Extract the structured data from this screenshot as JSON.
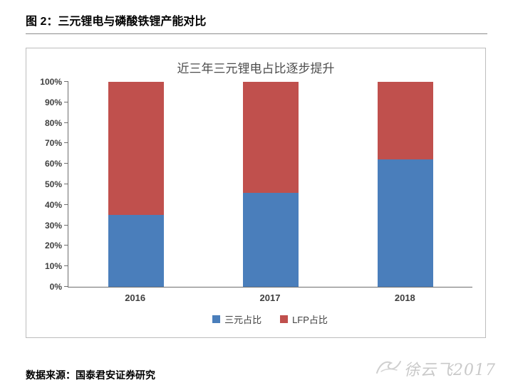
{
  "page": {
    "figure_title": "图 2：三元锂电与磷酸铁锂产能对比",
    "source": "数据来源：国泰君安证券研究",
    "watermark": "徐云飞2017"
  },
  "chart_data": {
    "type": "bar",
    "stacked": true,
    "title": "近三年三元锂电占比逐步提升",
    "categories": [
      "2016",
      "2017",
      "2018"
    ],
    "series": [
      {
        "name": "三元占比",
        "color": "#4a7ebb",
        "values": [
          35,
          46,
          62
        ]
      },
      {
        "name": "LFP占比",
        "color": "#c0504d",
        "values": [
          65,
          54,
          38
        ]
      }
    ],
    "xlabel": "",
    "ylabel": "",
    "ylim": [
      0,
      100
    ],
    "ytick_step": 10,
    "ytick_labels": [
      "0%",
      "10%",
      "20%",
      "30%",
      "40%",
      "50%",
      "60%",
      "70%",
      "80%",
      "90%",
      "100%"
    ],
    "legend_position": "bottom",
    "grid": false
  }
}
